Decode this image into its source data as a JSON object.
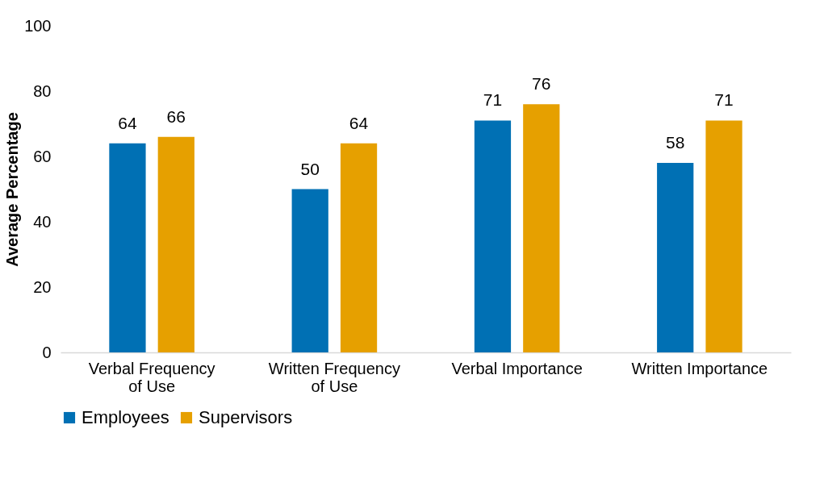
{
  "chart_data": {
    "type": "bar",
    "ylabel": "Average Percentage",
    "categories": [
      "Verbal Frequency of Use",
      "Written Frequency of Use",
      "Verbal Importance",
      "Written Importance"
    ],
    "series": [
      {
        "name": "Employees",
        "color": "#0070b4",
        "values": [
          64,
          50,
          71,
          58
        ]
      },
      {
        "name": "Supervisors",
        "color": "#e6a000",
        "values": [
          66,
          64,
          76,
          71
        ]
      }
    ],
    "ylim": [
      0,
      100
    ],
    "yticks": [
      0,
      20,
      40,
      60,
      80,
      100
    ],
    "grid": false,
    "legend": "bottom",
    "data_labels": true
  }
}
